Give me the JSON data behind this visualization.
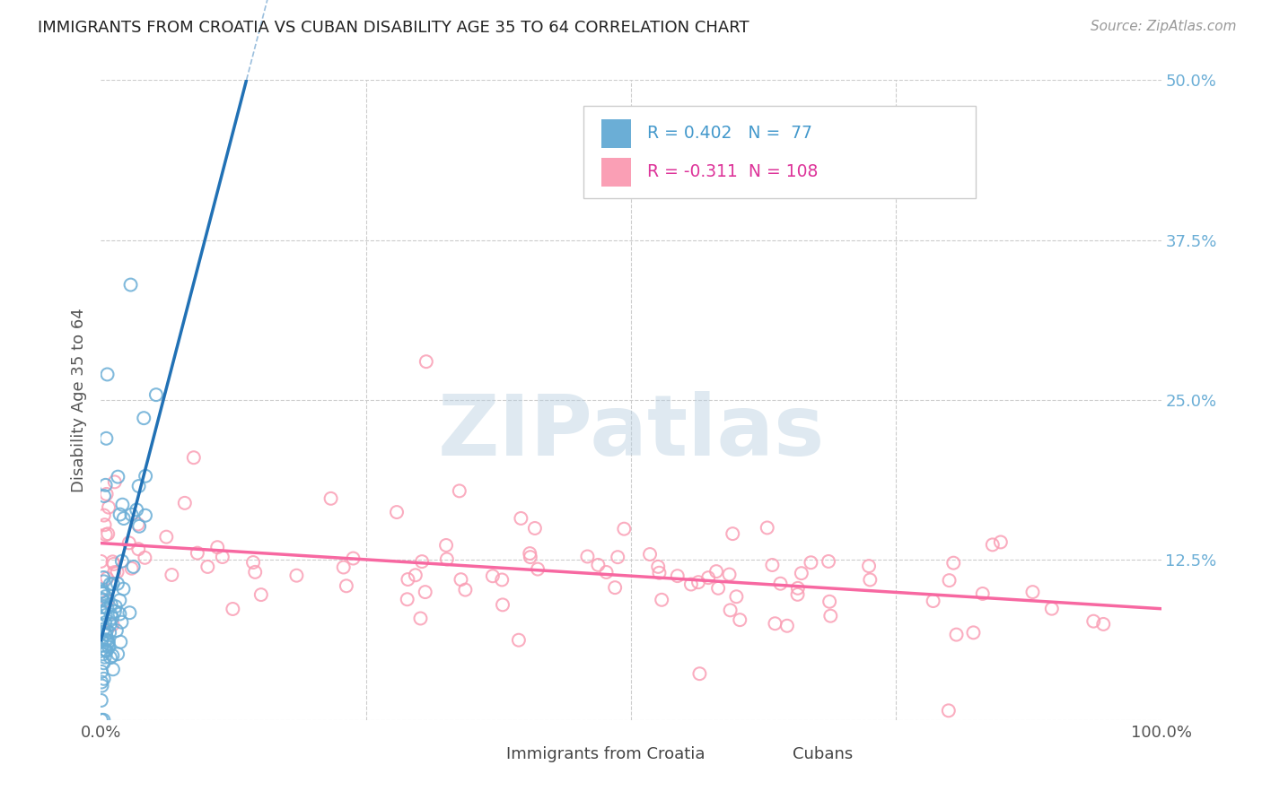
{
  "title": "IMMIGRANTS FROM CROATIA VS CUBAN DISABILITY AGE 35 TO 64 CORRELATION CHART",
  "source": "Source: ZipAtlas.com",
  "ylabel": "Disability Age 35 to 64",
  "xlim": [
    0,
    1.0
  ],
  "ylim": [
    0,
    0.5
  ],
  "xticks": [
    0.0,
    0.25,
    0.5,
    0.75,
    1.0
  ],
  "xticklabels": [
    "0.0%",
    "",
    "",
    "",
    "100.0%"
  ],
  "yticks": [
    0.0,
    0.125,
    0.25,
    0.375,
    0.5
  ],
  "yticklabels": [
    "",
    "12.5%",
    "25.0%",
    "37.5%",
    "50.0%"
  ],
  "croatia_R": 0.402,
  "croatia_N": 77,
  "cuban_R": -0.311,
  "cuban_N": 108,
  "croatia_color": "#6baed6",
  "cuban_color": "#fa9fb5",
  "croatia_line_color": "#2171b5",
  "cuban_line_color": "#f768a1",
  "watermark": "ZIPatlas",
  "legend_label_1": "Immigrants from Croatia",
  "legend_label_2": "Cubans",
  "background_color": "#ffffff",
  "grid_color": "#cccccc",
  "title_color": "#222222",
  "axis_label_color": "#555555",
  "right_tick_color": "#6baed6",
  "legend_R_color_1": "#4499cc",
  "legend_R_color_2": "#dd3399",
  "seed_croatia": 42,
  "seed_cuban": 123
}
